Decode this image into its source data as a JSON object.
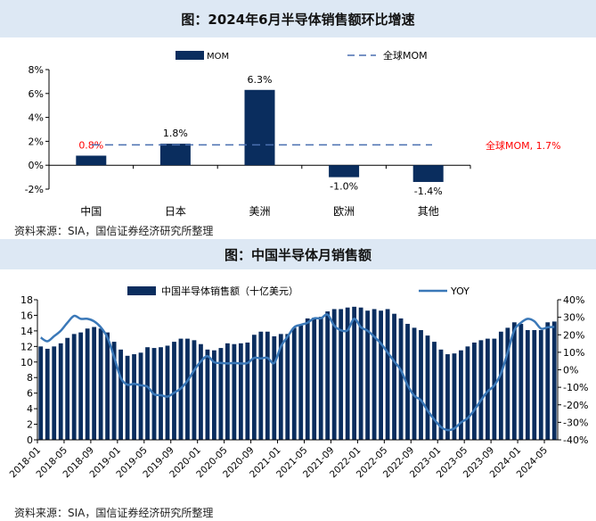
{
  "colors": {
    "bar": "#0a2d5e",
    "line": "#3a78b8",
    "global_line": "#4a6fb0",
    "red_label": "#ff0000",
    "band": "#dde8f4"
  },
  "chart_data": [
    {
      "type": "bar",
      "title": "图：2024年6月半导体销售额环比增速",
      "categories": [
        "中国",
        "日本",
        "美洲",
        "欧洲",
        "其他"
      ],
      "series": [
        {
          "name": "MOM",
          "values": [
            0.8,
            1.8,
            6.3,
            -1.0,
            -1.4
          ]
        }
      ],
      "data_labels": [
        "0.8%",
        "1.8%",
        "6.3%",
        "-1.0%",
        "-1.4%"
      ],
      "reference_line": {
        "name": "全球MOM",
        "value": 1.7,
        "label": "全球MOM, 1.7%"
      },
      "ylim": [
        -2,
        8
      ],
      "yticks": [
        "-2%",
        "0%",
        "2%",
        "4%",
        "6%",
        "8%"
      ],
      "ytick_values": [
        -2,
        0,
        2,
        4,
        6,
        8
      ],
      "legend": [
        "MOM",
        "全球MOM"
      ],
      "legend_placement": "top",
      "grid": false,
      "source": "资料来源：SIA，国信证券经济研究所整理"
    },
    {
      "type": "bar+line",
      "title": "图：中国半导体月销售额",
      "x_start": "2018-01",
      "x_end": "2024-06",
      "xticks": [
        "2018-01",
        "2018-05",
        "2018-09",
        "2019-01",
        "2019-05",
        "2019-09",
        "2020-01",
        "2020-05",
        "2020-09",
        "2021-01",
        "2021-05",
        "2021-09",
        "2022-01",
        "2022-05",
        "2022-09",
        "2023-01",
        "2023-05",
        "2023-09",
        "2024-01",
        "2024-05"
      ],
      "series": [
        {
          "name": "中国半导体销售额（十亿美元）",
          "axis": "left",
          "type": "bar",
          "values": [
            12.0,
            11.7,
            12.0,
            12.4,
            13.1,
            13.6,
            13.8,
            14.3,
            14.5,
            14.3,
            13.8,
            12.6,
            11.6,
            10.8,
            11.0,
            11.2,
            11.9,
            11.8,
            11.9,
            12.1,
            12.6,
            13.0,
            13.0,
            12.8,
            12.3,
            11.6,
            11.5,
            11.8,
            12.4,
            12.3,
            12.4,
            12.5,
            13.5,
            13.9,
            13.9,
            13.3,
            13.6,
            13.6,
            14.4,
            14.7,
            15.6,
            15.7,
            15.8,
            16.5,
            16.8,
            16.8,
            17.0,
            17.1,
            17.0,
            16.6,
            16.8,
            16.6,
            16.8,
            16.2,
            15.6,
            14.9,
            14.4,
            14.1,
            13.4,
            12.6,
            11.6,
            11.0,
            11.1,
            11.5,
            12.0,
            12.5,
            12.8,
            13.0,
            13.0,
            13.9,
            14.4,
            15.1,
            14.9,
            14.1,
            14.1,
            14.1,
            15.1,
            15.2
          ]
        },
        {
          "name": "YOY",
          "axis": "right",
          "type": "line",
          "values": [
            18.4,
            16.3,
            19.2,
            22.3,
            26.9,
            30.8,
            29.1,
            29.1,
            27.7,
            24.3,
            18.4,
            7.3,
            -4.6,
            -8.5,
            -8.0,
            -8.9,
            -9.7,
            -14.0,
            -14.5,
            -15.3,
            -13.1,
            -10.6,
            -6.3,
            -0.3,
            4.8,
            7.8,
            4.3,
            3.9,
            3.6,
            3.9,
            3.6,
            3.9,
            6.8,
            6.5,
            6.8,
            3.9,
            13.3,
            18.9,
            24.3,
            25.7,
            26.9,
            29.4,
            29.4,
            31.5,
            25.2,
            22.6,
            22.6,
            29.1,
            24.3,
            22.3,
            18.9,
            15.0,
            9.9,
            4.8,
            -0.3,
            -8.9,
            -14.8,
            -17.4,
            -23.3,
            -28.4,
            -32.7,
            -34.4,
            -33.5,
            -30.1,
            -27.6,
            -23.0,
            -17.4,
            -12.3,
            -8.9,
            -2.0,
            9.9,
            22.6,
            26.9,
            29.1,
            27.7,
            23.5,
            24.3,
            24.5
          ]
        }
      ],
      "ylim_left": [
        0,
        18
      ],
      "yticks_left": [
        "0",
        "2",
        "4",
        "6",
        "8",
        "10",
        "12",
        "14",
        "16",
        "18"
      ],
      "ylim_right": [
        -40,
        40
      ],
      "yticks_right": [
        "-40%",
        "-30%",
        "-20%",
        "-10%",
        "0%",
        "10%",
        "20%",
        "30%",
        "40%"
      ],
      "legend_placement": "top",
      "grid": false,
      "source": "资料来源：SIA，国信证券经济研究所整理"
    }
  ]
}
